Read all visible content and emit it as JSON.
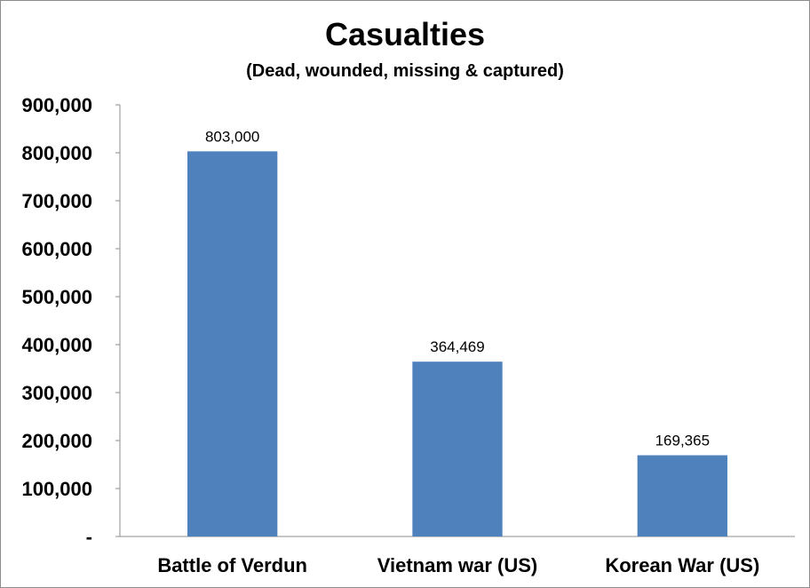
{
  "chart_data": {
    "type": "bar",
    "title": "Casualties",
    "subtitle": "(Dead, wounded, missing & captured)",
    "xlabel": "",
    "ylabel": "",
    "categories": [
      "Battle of Verdun",
      "Vietnam war (US)",
      "Korean War (US)"
    ],
    "values": [
      803000,
      364469,
      169365
    ],
    "data_labels": [
      "803,000",
      "364,469",
      "169,365"
    ],
    "ylim": [
      0,
      900000
    ],
    "yticks": [
      0,
      100000,
      200000,
      300000,
      400000,
      500000,
      600000,
      700000,
      800000,
      900000
    ],
    "ytick_labels": [
      "-",
      "100,000",
      "200,000",
      "300,000",
      "400,000",
      "500,000",
      "600,000",
      "700,000",
      "800,000",
      "900,000"
    ],
    "grid": false,
    "legend": "none",
    "bar_color": "#4f81bd"
  }
}
